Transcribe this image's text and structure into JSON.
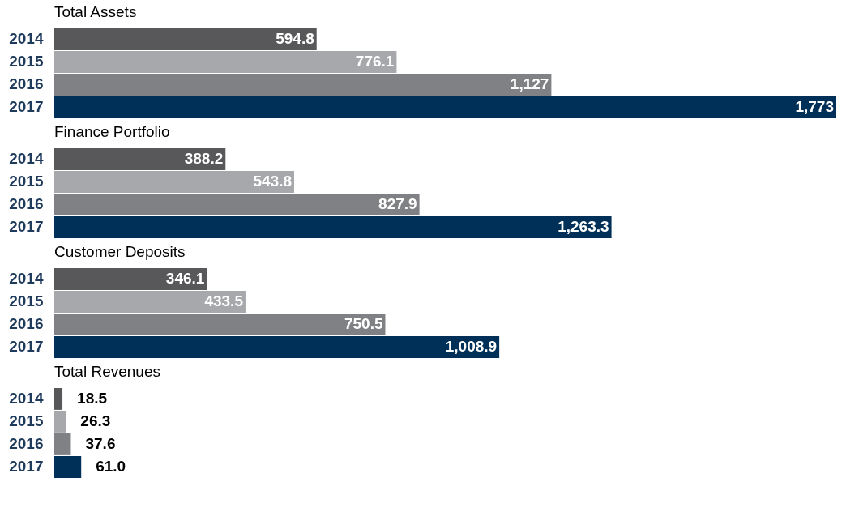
{
  "chart_data": [
    {
      "type": "bar",
      "orientation": "horizontal",
      "title": "Total Assets",
      "categories": [
        "2014",
        "2015",
        "2016",
        "2017"
      ],
      "values": [
        594.8,
        776.1,
        1127,
        1773
      ],
      "value_labels": [
        "594.8",
        "776.1",
        "1,127",
        "1,773"
      ],
      "colors": [
        "#58585a",
        "#a7a8ab",
        "#808184",
        "#003057"
      ]
    },
    {
      "type": "bar",
      "orientation": "horizontal",
      "title": "Finance Portfolio",
      "categories": [
        "2014",
        "2015",
        "2016",
        "2017"
      ],
      "values": [
        388.2,
        543.8,
        827.9,
        1263.3
      ],
      "value_labels": [
        "388.2",
        "543.8",
        "827.9",
        "1,263.3"
      ],
      "colors": [
        "#58585a",
        "#a7a8ab",
        "#808184",
        "#003057"
      ]
    },
    {
      "type": "bar",
      "orientation": "horizontal",
      "title": "Customer Deposits",
      "categories": [
        "2014",
        "2015",
        "2016",
        "2017"
      ],
      "values": [
        346.1,
        433.5,
        750.5,
        1008.9
      ],
      "value_labels": [
        "346.1",
        "433.5",
        "750.5",
        "1,008.9"
      ],
      "colors": [
        "#58585a",
        "#a7a8ab",
        "#808184",
        "#003057"
      ]
    },
    {
      "type": "bar",
      "orientation": "horizontal",
      "title": "Total Revenues",
      "categories": [
        "2014",
        "2015",
        "2016",
        "2017"
      ],
      "values": [
        18.5,
        26.3,
        37.6,
        61.0
      ],
      "value_labels": [
        "18.5",
        "26.3",
        "37.6",
        "61.0"
      ],
      "colors": [
        "#58585a",
        "#a7a8ab",
        "#808184",
        "#003057"
      ]
    }
  ]
}
